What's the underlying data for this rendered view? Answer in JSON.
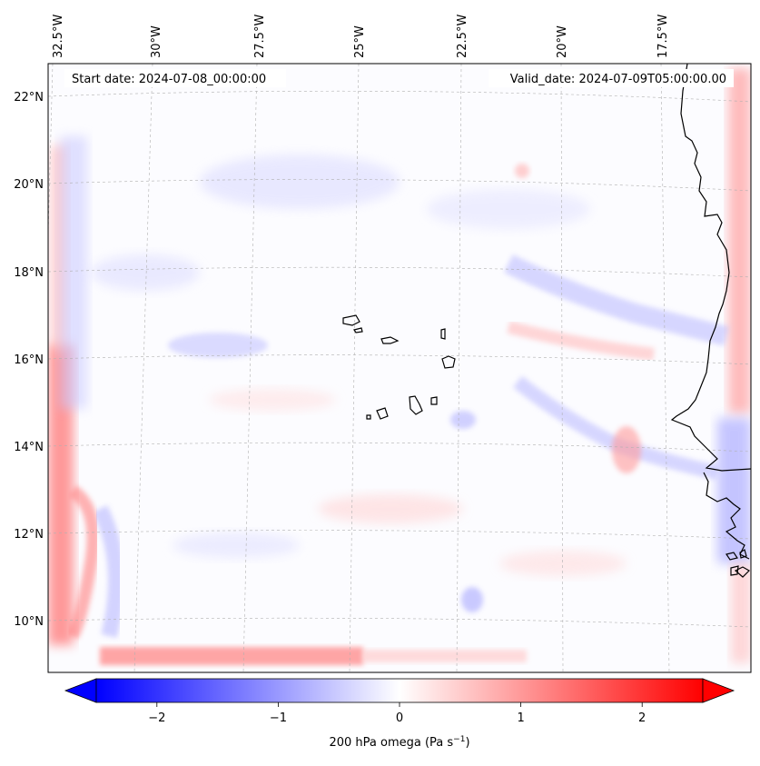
{
  "map": {
    "start_date": "Start date: 2024-07-08_00:00:00",
    "valid_date": "Valid_date: 2024-07-09T05:00:00.00",
    "lon_labels": [
      "32.5°W",
      "30°W",
      "27.5°W",
      "25°W",
      "22.5°W",
      "20°W",
      "17.5°W"
    ],
    "lat_labels": [
      "22°N",
      "20°N",
      "18°N",
      "16°N",
      "14°N",
      "12°N",
      "10°N"
    ],
    "field": "200 hPa omega",
    "colors": {
      "negative": "#0000ff",
      "positive": "#ff0000",
      "coast": "#000000",
      "grid": "#b0b0b0"
    }
  },
  "colorbar": {
    "label_main": "200 hPa omega (Pa s",
    "label_exp": "−1",
    "label_close": ")",
    "tick_labels": [
      "−2",
      "−1",
      "0",
      "1",
      "2"
    ],
    "ticks": [
      -2,
      -1,
      0,
      1,
      2
    ],
    "range": [
      -2.5,
      2.5
    ],
    "extend": "both"
  }
}
